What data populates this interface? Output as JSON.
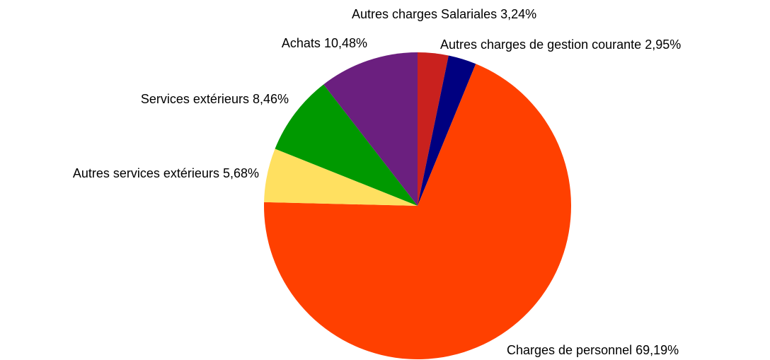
{
  "chart_data": {
    "type": "pie",
    "categories": [
      "Autres charges Salariales",
      "Autres charges de gestion courante",
      "Charges de personnel",
      "Autres services extérieurs",
      "Services extérieurs",
      "Achats"
    ],
    "values": [
      3.24,
      2.95,
      69.19,
      5.68,
      8.46,
      10.48
    ],
    "value_labels": [
      "3,24%",
      "2,95%",
      "69,19%",
      "5,68%",
      "8,46%",
      "10,48%"
    ],
    "colors": [
      "#c9211e",
      "#000080",
      "#ff4000",
      "#ffe060",
      "#009900",
      "#6b1f7f"
    ]
  }
}
